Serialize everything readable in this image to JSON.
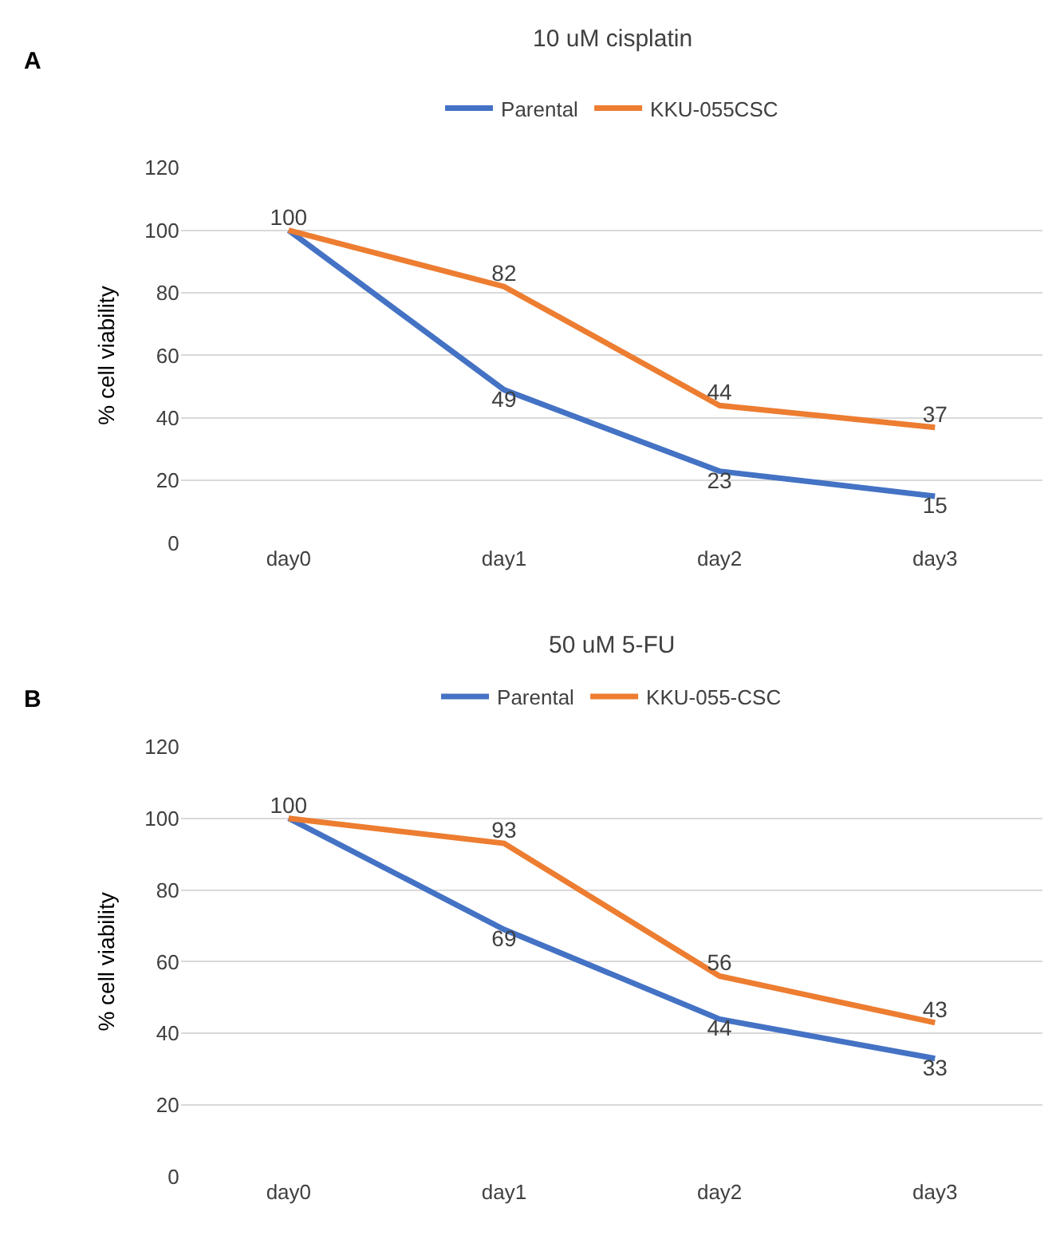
{
  "chart_data": [
    {
      "type": "line",
      "title": "10 uM cisplatin",
      "ylabel": "% cell viability",
      "annotations": [
        "A"
      ],
      "categories": [
        "day0",
        "day1",
        "day2",
        "day3"
      ],
      "ylim": [
        0,
        120
      ],
      "yticks": [
        0,
        20,
        40,
        60,
        80,
        100,
        120
      ],
      "grid": "y",
      "legend": "top",
      "marker": "none",
      "line_style": "solid",
      "series": [
        {
          "name": "Parental",
          "color": "#4472c4",
          "values": [
            100,
            49,
            23,
            15
          ],
          "value_labels": [
            null,
            "49",
            "23",
            "15"
          ]
        },
        {
          "name": "KKU-055CSC",
          "color": "#ed7d31",
          "values": [
            100,
            82,
            44,
            37
          ],
          "value_labels": [
            "100",
            "82",
            "44",
            "37"
          ]
        }
      ]
    },
    {
      "type": "line",
      "title": "50 uM 5-FU",
      "ylabel": "% cell viability",
      "annotations": [
        "B"
      ],
      "categories": [
        "day0",
        "day1",
        "day2",
        "day3"
      ],
      "ylim": [
        0,
        120
      ],
      "yticks": [
        0,
        20,
        40,
        60,
        80,
        100,
        120
      ],
      "grid": "y",
      "legend": "top",
      "marker": "none",
      "line_style": "solid",
      "series": [
        {
          "name": "Parental",
          "color": "#4472c4",
          "values": [
            100,
            69,
            44,
            33
          ],
          "value_labels": [
            null,
            "69",
            "44",
            "33"
          ]
        },
        {
          "name": "KKU-055-CSC",
          "color": "#ed7d31",
          "values": [
            100,
            93,
            56,
            43
          ],
          "value_labels": [
            "100",
            "93",
            "56",
            "43"
          ]
        }
      ]
    }
  ]
}
